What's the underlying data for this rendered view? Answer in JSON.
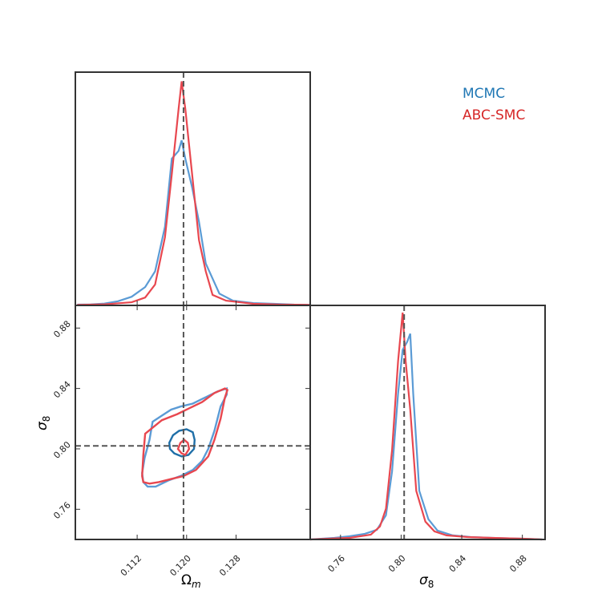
{
  "legend": {
    "entries": [
      {
        "label": "MCMC",
        "color": "#1f77b4"
      },
      {
        "label": "ABC-SMC",
        "color": "#d62728"
      }
    ],
    "placement": "top-right"
  },
  "colors": {
    "mcmc_line": "#5b9bd5",
    "mcmc_contour_inner": "#1f6fa8",
    "abc_line": "#e8474f",
    "truth_line": "#555555",
    "frame": "#333333"
  },
  "labels": {
    "omega_main": "Ω",
    "omega_sub": "m",
    "sigma_main": "σ",
    "sigma_sub": "8"
  },
  "chart_data": [
    {
      "type": "line",
      "panel": "marginal-omega_m",
      "xlim": [
        0.102,
        0.14
      ],
      "ylim": [
        0,
        1.0
      ],
      "xticks_labeled": false,
      "truth_value": 0.1195,
      "series": [
        {
          "name": "MCMC",
          "x": [
            0.1023,
            0.1045,
            0.1067,
            0.1089,
            0.1111,
            0.1133,
            0.1149,
            0.1165,
            0.1176,
            0.1187,
            0.1192,
            0.1198,
            0.1209,
            0.122,
            0.1231,
            0.1253,
            0.1275,
            0.1308,
            0.1341,
            0.1374,
            0.14
          ],
          "y": [
            0.0034,
            0.0046,
            0.008,
            0.0183,
            0.0377,
            0.08,
            0.1486,
            0.3429,
            0.64,
            0.6743,
            0.72,
            0.64,
            0.5143,
            0.3657,
            0.1829,
            0.0514,
            0.0206,
            0.0103,
            0.0069,
            0.0034,
            0.0023
          ]
        },
        {
          "name": "ABC-SMC",
          "x": [
            0.1023,
            0.1067,
            0.1111,
            0.1133,
            0.1149,
            0.1165,
            0.1176,
            0.1187,
            0.1192,
            0.1198,
            0.1209,
            0.122,
            0.1231,
            0.1242,
            0.1264,
            0.1308,
            0.1352,
            0.14
          ],
          "y": [
            0.0023,
            0.0046,
            0.0137,
            0.0343,
            0.0914,
            0.2971,
            0.5714,
            0.8571,
            0.9771,
            0.8571,
            0.5714,
            0.2857,
            0.1486,
            0.0457,
            0.0206,
            0.0069,
            0.0034,
            0.0023
          ]
        }
      ]
    },
    {
      "type": "contour",
      "panel": "joint-omega_m-sigma_8",
      "xlabel": "Ωm",
      "ylabel": "σ8",
      "xlim": [
        0.102,
        0.14
      ],
      "ylim": [
        0.74,
        0.895
      ],
      "xticks": [
        0.112,
        0.12,
        0.128
      ],
      "xtick_labels": [
        "0.112",
        "0.120",
        "0.128"
      ],
      "yticks": [
        0.76,
        0.8,
        0.84,
        0.88
      ],
      "ytick_labels": [
        "0.76",
        "0.80",
        "0.84",
        "0.88"
      ],
      "truth": {
        "x": 0.1195,
        "y": 0.802
      },
      "series": [
        {
          "name": "MCMC",
          "level": "outer",
          "x": [
            0.1145,
            0.116,
            0.1175,
            0.119,
            0.121,
            0.123,
            0.125,
            0.1265,
            0.1265,
            0.1255,
            0.1245,
            0.1235,
            0.1225,
            0.121,
            0.119,
            0.117,
            0.115,
            0.1137,
            0.113,
            0.1128,
            0.1132,
            0.114,
            0.1145
          ],
          "y": [
            0.818,
            0.822,
            0.826,
            0.828,
            0.83,
            0.834,
            0.838,
            0.84,
            0.836,
            0.828,
            0.812,
            0.8,
            0.792,
            0.786,
            0.782,
            0.779,
            0.775,
            0.775,
            0.778,
            0.784,
            0.794,
            0.806,
            0.818
          ]
        },
        {
          "name": "ABC-SMC",
          "level": "outer",
          "x": [
            0.1133,
            0.116,
            0.1185,
            0.1205,
            0.1225,
            0.1245,
            0.1262,
            0.1266,
            0.1262,
            0.1255,
            0.1245,
            0.1235,
            0.1215,
            0.1195,
            0.1175,
            0.1155,
            0.114,
            0.113,
            0.1128,
            0.113,
            0.1133
          ],
          "y": [
            0.81,
            0.819,
            0.823,
            0.827,
            0.831,
            0.837,
            0.84,
            0.839,
            0.834,
            0.82,
            0.806,
            0.795,
            0.786,
            0.782,
            0.78,
            0.778,
            0.777,
            0.778,
            0.782,
            0.796,
            0.81
          ]
        },
        {
          "name": "MCMC",
          "level": "inner",
          "x": [
            0.1178,
            0.1188,
            0.12,
            0.121,
            0.1213,
            0.1212,
            0.1203,
            0.1192,
            0.118,
            0.1173,
            0.1172,
            0.1178
          ],
          "y": [
            0.809,
            0.812,
            0.813,
            0.811,
            0.806,
            0.8,
            0.796,
            0.795,
            0.797,
            0.8,
            0.804,
            0.809
          ]
        },
        {
          "name": "ABC-SMC",
          "level": "inner",
          "x": [
            0.119,
            0.1196,
            0.1202,
            0.1204,
            0.1198,
            0.1192,
            0.1186,
            0.119
          ],
          "y": [
            0.804,
            0.806,
            0.804,
            0.8,
            0.796,
            0.797,
            0.8,
            0.804
          ]
        }
      ]
    },
    {
      "type": "line",
      "panel": "marginal-sigma_8",
      "xlabel": "σ8",
      "xlim": [
        0.74,
        0.895
      ],
      "ylim": [
        0,
        1.0
      ],
      "xticks": [
        0.76,
        0.8,
        0.84,
        0.88
      ],
      "xtick_labels": [
        "0.76",
        "0.80",
        "0.84",
        "0.88"
      ],
      "truth_value": 0.802,
      "series": [
        {
          "name": "MCMC",
          "x": [
            0.74,
            0.756,
            0.766,
            0.776,
            0.784,
            0.79,
            0.794,
            0.798,
            0.801,
            0.804,
            0.806,
            0.808,
            0.812,
            0.818,
            0.824,
            0.834,
            0.846,
            0.86,
            0.88,
            0.893
          ],
          "y": [
            0.0,
            0.007,
            0.0141,
            0.0246,
            0.0423,
            0.1056,
            0.2958,
            0.6338,
            0.8239,
            0.8592,
            0.8944,
            0.6338,
            0.2113,
            0.088,
            0.0387,
            0.0176,
            0.0106,
            0.007,
            0.0035,
            0.0
          ]
        },
        {
          "name": "ABC-SMC",
          "x": [
            0.74,
            0.766,
            0.78,
            0.786,
            0.79,
            0.794,
            0.798,
            0.801,
            0.803,
            0.806,
            0.81,
            0.816,
            0.822,
            0.83,
            0.844,
            0.86,
            0.88,
            0.893
          ],
          "y": [
            0.0,
            0.007,
            0.0211,
            0.0563,
            0.1338,
            0.3873,
            0.7746,
            0.9859,
            0.7746,
            0.5634,
            0.2113,
            0.0775,
            0.0352,
            0.0176,
            0.0106,
            0.007,
            0.0035,
            0.0
          ]
        }
      ]
    }
  ]
}
